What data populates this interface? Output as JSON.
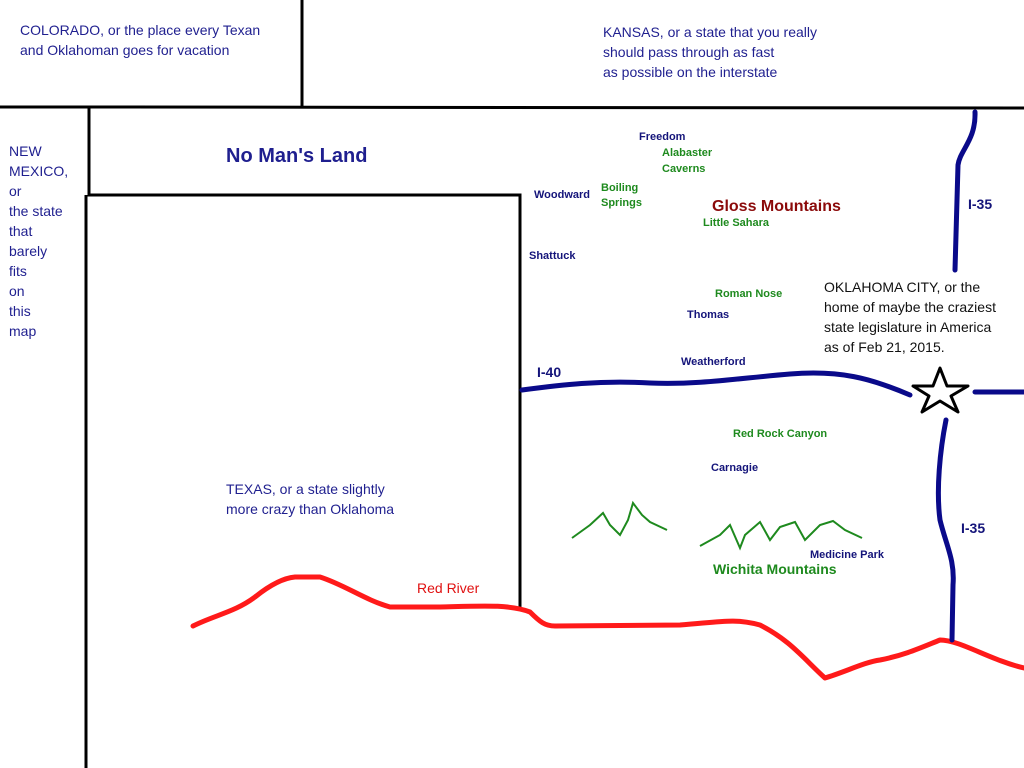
{
  "regions": {
    "colorado": [
      "COLORADO, or the place every Texan",
      "and Oklahoman goes for vacation"
    ],
    "kansas": [
      "KANSAS, or a state that you really",
      "should pass through as fast",
      "as possible on the interstate"
    ],
    "new_mexico": [
      "NEW",
      "MEXICO,",
      "or",
      "the state",
      "that",
      "barely",
      "fits",
      "on",
      "this",
      "map"
    ],
    "no_mans_land": "No Man's Land",
    "texas": [
      "TEXAS, or a state slightly",
      "more crazy than Oklahoma"
    ],
    "oklahoma_city": [
      "OKLAHOMA CITY, or the",
      "home of maybe the craziest",
      "state legislature in America",
      "as of Feb 21, 2015."
    ]
  },
  "towns": [
    "Freedom",
    "Woodward",
    "Shattuck",
    "Thomas",
    "Weatherford",
    "Carnagie",
    "Medicine Park"
  ],
  "features": {
    "alabaster_caverns": [
      "Alabaster",
      "Caverns"
    ],
    "boiling_springs": [
      "Boiling",
      "Springs"
    ],
    "gloss_mountains": "Gloss Mountains",
    "little_sahara": "Little Sahara",
    "roman_nose": "Roman Nose",
    "red_rock_canyon": "Red Rock Canyon",
    "wichita_mountains": "Wichita Mountains",
    "red_river": "Red River"
  },
  "highways": {
    "i40": "I-40",
    "i35_north": "I-35",
    "i35_south": "I-35"
  }
}
